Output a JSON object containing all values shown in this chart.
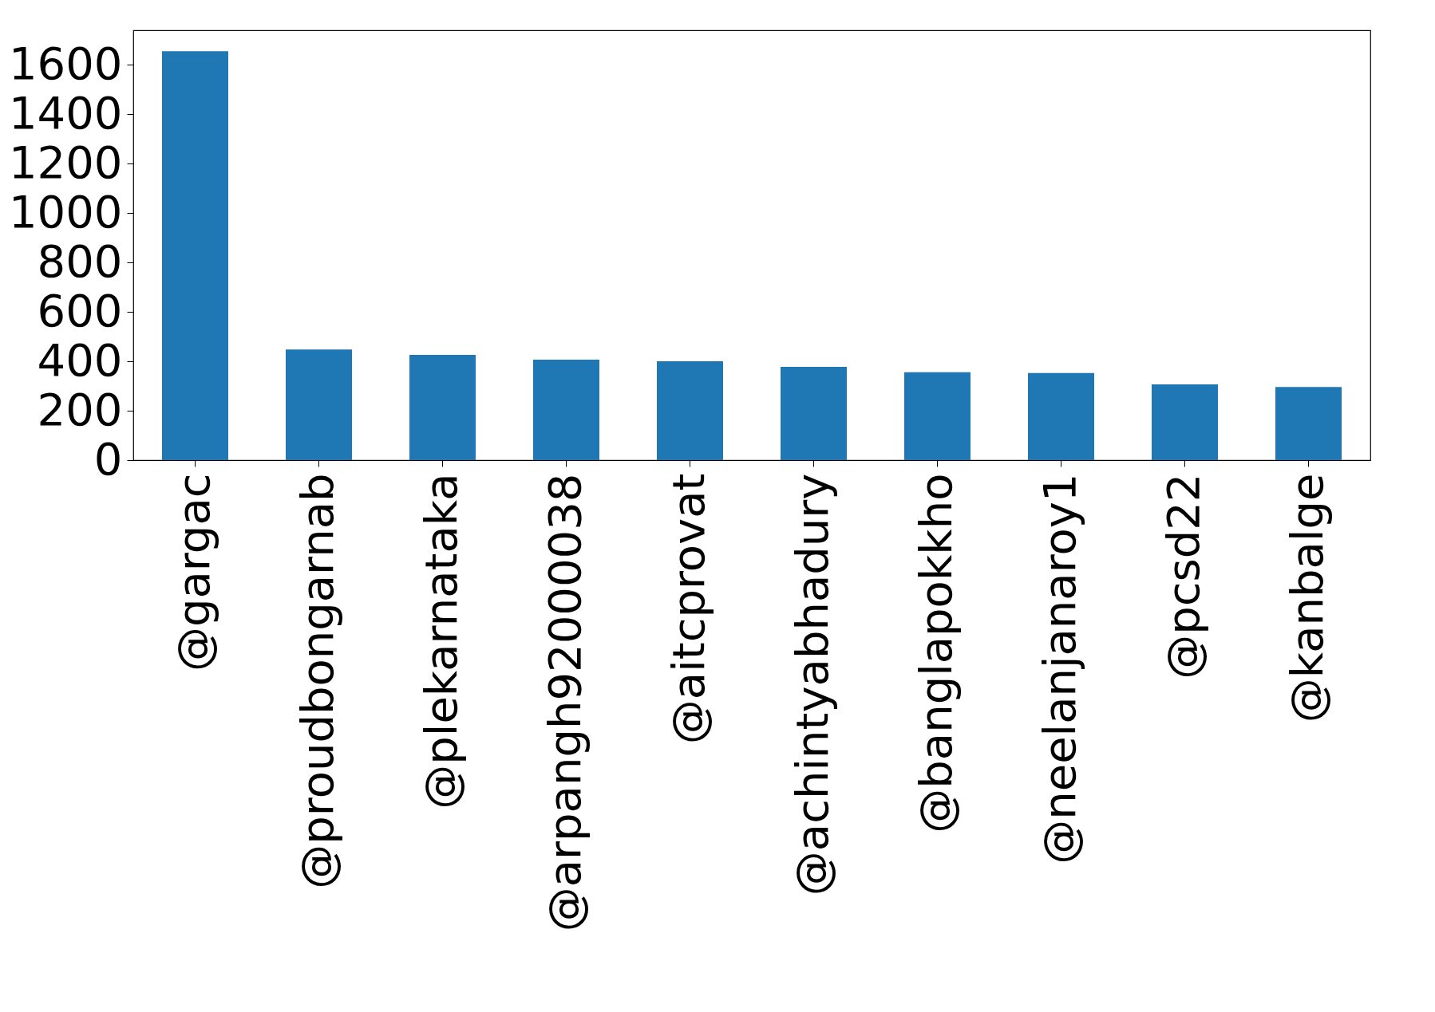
{
  "chart_data": {
    "type": "bar",
    "categories": [
      "@gargac",
      "@proudbongarnab",
      "@plekarnataka",
      "@arpangh92000038",
      "@aitcprovat",
      "@achintyabhadury",
      "@banglapokkho",
      "@neelanjanaroy1",
      "@pcsd22",
      "@kanbalge"
    ],
    "values": [
      1655,
      448,
      426,
      407,
      400,
      378,
      356,
      353,
      307,
      296
    ],
    "color": "#1f77b4",
    "ylim": [
      0,
      1740
    ],
    "yticks": [
      0,
      200,
      400,
      600,
      800,
      1000,
      1200,
      1400,
      1600
    ],
    "grid": false
  }
}
